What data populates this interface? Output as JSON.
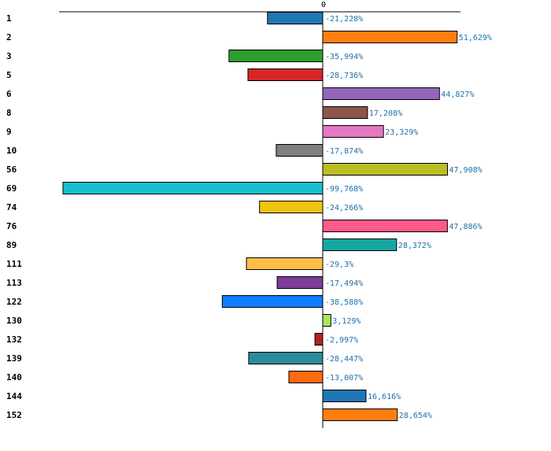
{
  "chart_data": {
    "type": "bar",
    "orientation": "horizontal",
    "title": "",
    "xlabel": "",
    "ylabel": "",
    "xlim": [
      -100,
      53
    ],
    "zero_tick_label": "0",
    "categories": [
      "1",
      "2",
      "3",
      "5",
      "6",
      "8",
      "9",
      "10",
      "56",
      "69",
      "74",
      "76",
      "89",
      "111",
      "113",
      "122",
      "130",
      "132",
      "139",
      "140",
      "144",
      "152"
    ],
    "values": [
      -21.228,
      51.629,
      -35.994,
      -28.736,
      44.827,
      17.208,
      23.329,
      -17.874,
      47.908,
      -99.768,
      -24.266,
      47.886,
      28.372,
      -29.3,
      -17.494,
      -38.588,
      3.129,
      -2.997,
      -28.447,
      -13.007,
      16.616,
      28.654
    ],
    "value_labels": [
      "-21,228%",
      "51,629%",
      "-35,994%",
      "-28,736%",
      "44,827%",
      "17,208%",
      "23,329%",
      "-17,874%",
      "47,908%",
      "-99,768%",
      "-24,266%",
      "47,886%",
      "28,372%",
      "-29,3%",
      "-17,494%",
      "-38,588%",
      "3,129%",
      "-2,997%",
      "-28,447%",
      "-13,007%",
      "16,616%",
      "28,654%"
    ],
    "colors": [
      "#1f77b4",
      "#ff7f0e",
      "#2ca02c",
      "#d62728",
      "#9467bd",
      "#8c564b",
      "#e377c2",
      "#7f7f7f",
      "#bcbd22",
      "#17becf",
      "#f1c40f",
      "#ff5a8a",
      "#16a8a0",
      "#ffbf47",
      "#7d3c98",
      "#0d7dff",
      "#a8e85a",
      "#b22222",
      "#2e8b9a",
      "#ff6a0e",
      "#1f77b4",
      "#ff7f0e"
    ],
    "grid": false,
    "legend": "none"
  }
}
